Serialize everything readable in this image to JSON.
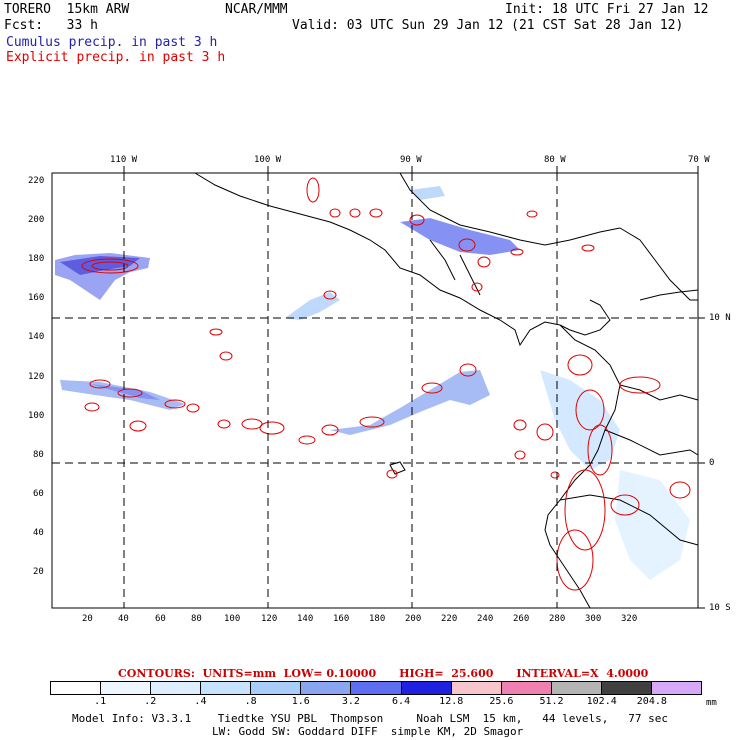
{
  "header": {
    "model": "TORERO  15km ARW",
    "center": "NCAR/MMM",
    "init": "Init: 18 UTC Fri 27 Jan 12",
    "fcst": "Fcst:   33 h",
    "valid": "Valid: 03 UTC Sun 29 Jan 12 (21 CST Sat 28 Jan 12)",
    "cumulus_label": "Cumulus precip. in past 3 h",
    "explicit_label": "Explicit precip. in past 3 h"
  },
  "colors": {
    "cumulus": "#2222aa",
    "explicit": "#e00000",
    "land": "#000000",
    "grid": "#000000"
  },
  "map": {
    "top_lon_labels": [
      "110 W",
      "100 W",
      "90 W",
      "80 W",
      "70 W"
    ],
    "right_lat_labels": [
      "10 N",
      "0",
      "10 S"
    ],
    "y_ticks": [
      "220",
      "200",
      "180",
      "160",
      "140",
      "120",
      "100",
      "80",
      "60",
      "40",
      "20"
    ],
    "x_ticks": [
      "20",
      "40",
      "60",
      "80",
      "100",
      "120",
      "140",
      "160",
      "180",
      "200",
      "220",
      "240",
      "260",
      "280",
      "300",
      "320"
    ]
  },
  "contours": {
    "text": "CONTOURS:  UNITS=mm  LOW= 0.10000      HIGH=  25.600      INTERVAL=X  4.0000"
  },
  "legend": {
    "unit": "mm",
    "thresholds": [
      ".1",
      ".2",
      ".4",
      ".8",
      "1.6",
      "3.2",
      "6.4",
      "12.8",
      "25.6",
      "51.2",
      "102.4",
      "204.8"
    ],
    "fill_colors": [
      "#ffffff",
      "#eef6ff",
      "#dceeff",
      "#c6e2ff",
      "#a9cdfa",
      "#8aa6f2",
      "#5e6ef0",
      "#2020e0",
      "#f6c6cc",
      "#f080b0",
      "#b4b4b4",
      "#404040",
      "#d8a8f8"
    ]
  },
  "footer": {
    "line1": "Model Info: V3.3.1    Tiedtke YSU PBL  Thompson     Noah LSM  15 km,   44 levels,   77 sec",
    "line2": "LW: Godd SW: Goddard DIFF  simple KM, 2D Smagor"
  }
}
